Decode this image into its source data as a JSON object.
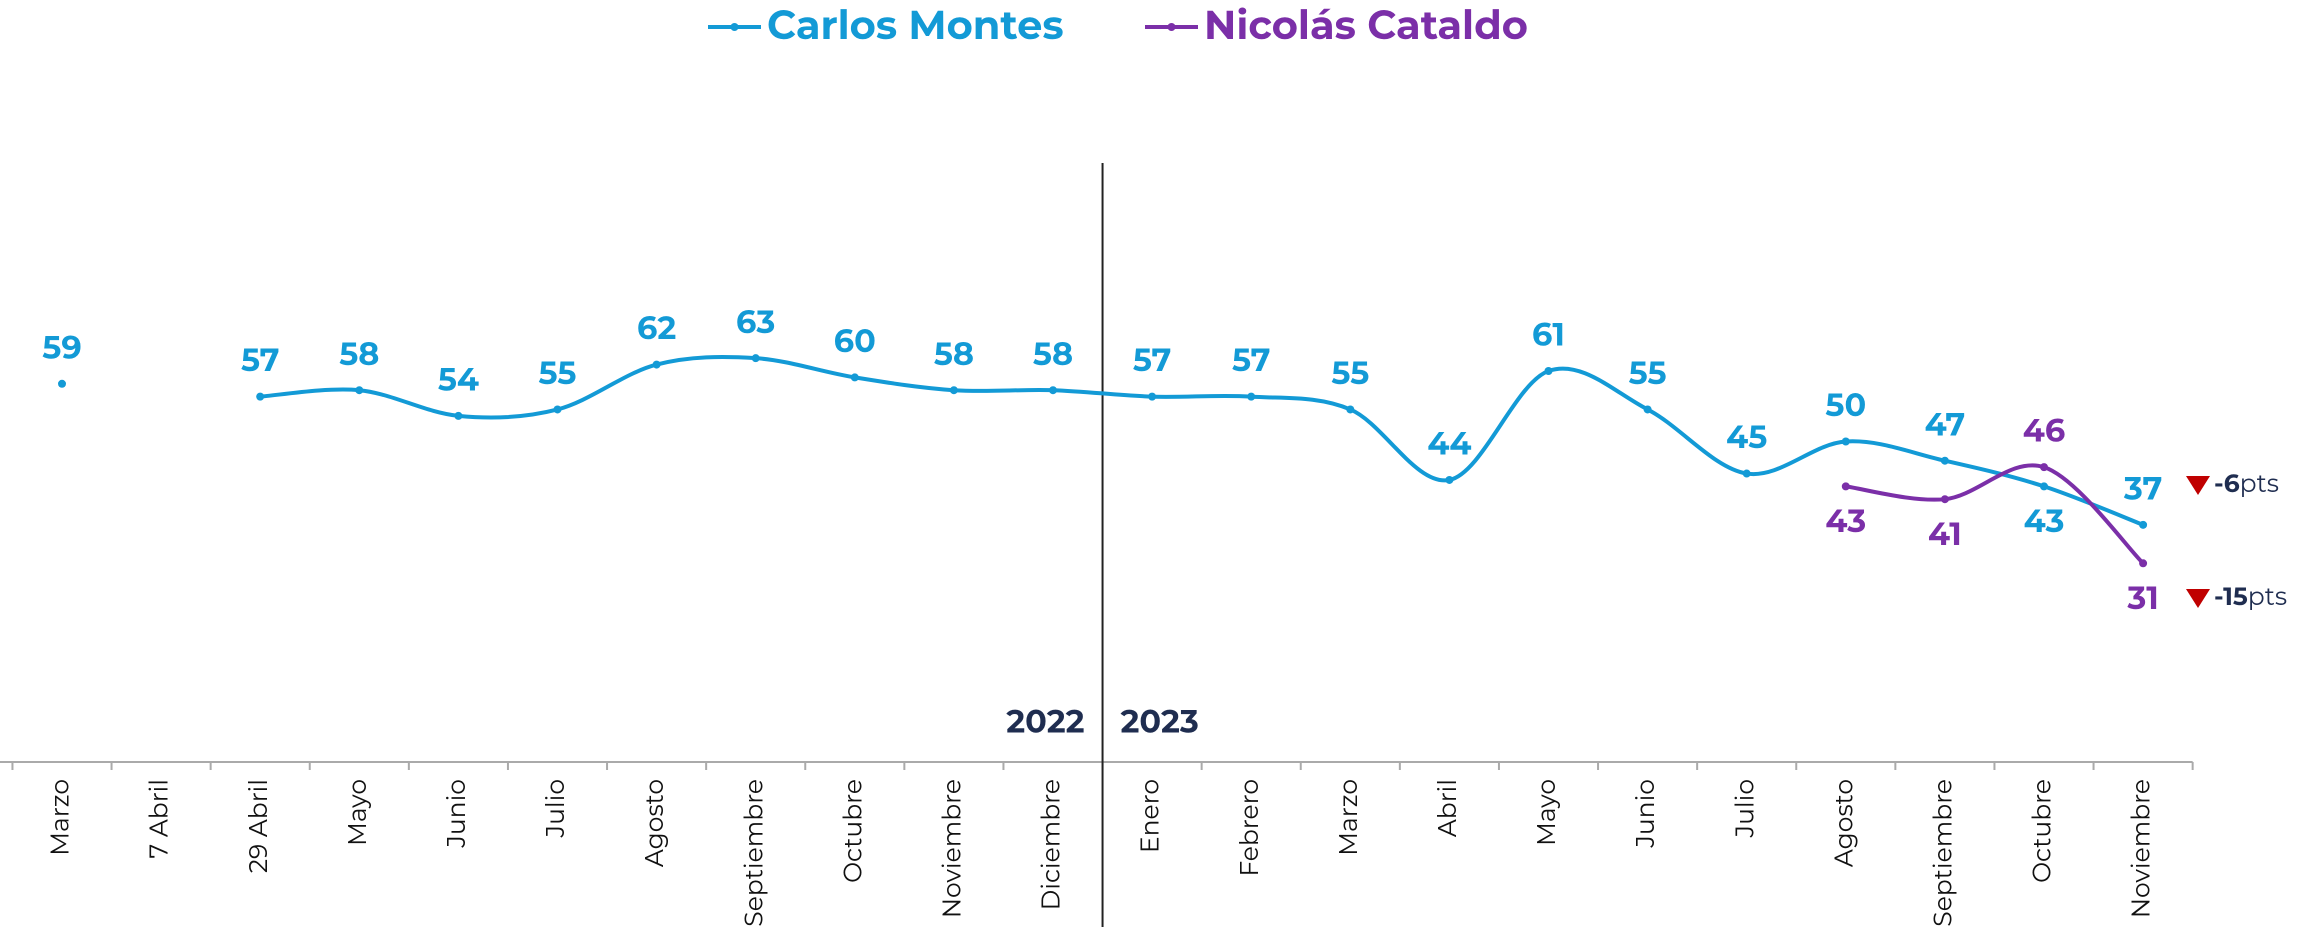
{
  "chart_data": {
    "type": "line",
    "categories": [
      "Marzo",
      "7 Abril",
      "29 Abril",
      "Mayo",
      "Junio",
      "Julio",
      "Agosto",
      "Septiembre",
      "Octubre",
      "Noviembre",
      "Diciembre",
      "Enero",
      "Febrero",
      "Marzo",
      "Abril",
      "Mayo",
      "Junio",
      "Julio",
      "Agosto",
      "Septiembre",
      "Octubre",
      "Noviembre"
    ],
    "series": [
      {
        "name": "Carlos Montes",
        "color": "#139ad6",
        "values": [
          59,
          null,
          57,
          58,
          54,
          55,
          62,
          63,
          60,
          58,
          58,
          57,
          57,
          55,
          44,
          61,
          55,
          45,
          50,
          47,
          43,
          37
        ]
      },
      {
        "name": "Nicolás Cataldo",
        "color": "#7b2fa8",
        "values": [
          null,
          null,
          null,
          null,
          null,
          null,
          null,
          null,
          null,
          null,
          null,
          null,
          null,
          null,
          null,
          null,
          null,
          null,
          43,
          41,
          46,
          31
        ]
      }
    ],
    "ylim": [
      0,
      100
    ],
    "year_labels": [
      "2022",
      "2023"
    ],
    "annotations": [
      {
        "text": "-6",
        "unit": "pts"
      },
      {
        "text": "-15",
        "unit": "pts"
      }
    ],
    "legend": "top"
  }
}
